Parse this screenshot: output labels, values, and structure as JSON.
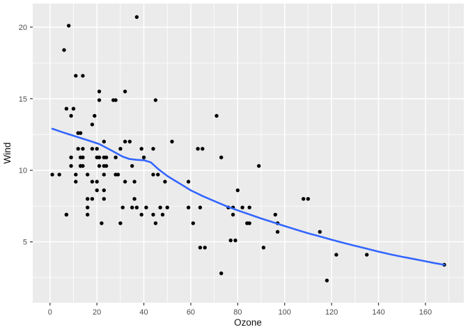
{
  "chart_data": {
    "type": "scatter",
    "title": "",
    "xlabel": "Ozone",
    "ylabel": "Wind",
    "legend": "none",
    "grid": "on",
    "panel_style": "ggplot-gray",
    "xlim": [
      -7.35,
      176.35
    ],
    "ylim": [
      0.75,
      21.65
    ],
    "x_major_ticks": [
      0,
      20,
      40,
      60,
      80,
      100,
      120,
      140,
      160
    ],
    "x_minor_ticks": [
      10,
      30,
      50,
      70,
      90,
      110,
      130,
      150,
      170
    ],
    "y_major_ticks": [
      5,
      10,
      15,
      20
    ],
    "y_minor_ticks": [
      2.5,
      7.5,
      12.5,
      17.5
    ],
    "colors": {
      "panel_bg": "#EBEBEB",
      "grid_major": "#FFFFFF",
      "grid_minor": "#FFFFFF",
      "point": "#000000",
      "smooth_line": "#3366FF",
      "tick_text": "#4D4D4D",
      "tick_mark": "#333333",
      "axis_title": "#111111",
      "outer_bg": "#FFFFFF"
    },
    "points": [
      [
        41,
        7.4
      ],
      [
        36,
        8.0
      ],
      [
        12,
        12.6
      ],
      [
        18,
        11.5
      ],
      [
        28,
        14.9
      ],
      [
        23,
        8.6
      ],
      [
        19,
        13.8
      ],
      [
        8,
        20.1
      ],
      [
        7,
        6.9
      ],
      [
        16,
        9.7
      ],
      [
        11,
        9.2
      ],
      [
        14,
        10.9
      ],
      [
        18,
        13.2
      ],
      [
        14,
        11.5
      ],
      [
        34,
        12.0
      ],
      [
        6,
        18.4
      ],
      [
        30,
        11.5
      ],
      [
        11,
        9.7
      ],
      [
        1,
        9.7
      ],
      [
        11,
        16.6
      ],
      [
        4,
        9.7
      ],
      [
        32,
        12.0
      ],
      [
        23,
        12.0
      ],
      [
        45,
        14.9
      ],
      [
        115,
        5.7
      ],
      [
        37,
        7.4
      ],
      [
        29,
        9.7
      ],
      [
        71,
        13.8
      ],
      [
        39,
        11.5
      ],
      [
        23,
        8.0
      ],
      [
        21,
        14.9
      ],
      [
        37,
        20.7
      ],
      [
        20,
        9.2
      ],
      [
        12,
        11.5
      ],
      [
        13,
        10.3
      ],
      [
        135,
        4.1
      ],
      [
        49,
        9.2
      ],
      [
        32,
        9.2
      ],
      [
        64,
        4.6
      ],
      [
        40,
        10.9
      ],
      [
        77,
        5.1
      ],
      [
        97,
        6.3
      ],
      [
        97,
        5.7
      ],
      [
        85,
        7.4
      ],
      [
        10,
        14.3
      ],
      [
        27,
        14.9
      ],
      [
        7,
        14.3
      ],
      [
        48,
        6.9
      ],
      [
        35,
        10.3
      ],
      [
        61,
        6.3
      ],
      [
        79,
        5.1
      ],
      [
        63,
        11.5
      ],
      [
        16,
        6.9
      ],
      [
        80,
        8.6
      ],
      [
        108,
        8.0
      ],
      [
        20,
        8.6
      ],
      [
        52,
        12.0
      ],
      [
        82,
        7.4
      ],
      [
        50,
        7.4
      ],
      [
        64,
        7.4
      ],
      [
        59,
        9.2
      ],
      [
        39,
        6.9
      ],
      [
        9,
        13.8
      ],
      [
        16,
        7.4
      ],
      [
        78,
        6.9
      ],
      [
        35,
        7.4
      ],
      [
        66,
        4.6
      ],
      [
        122,
        4.1
      ],
      [
        89,
        10.3
      ],
      [
        110,
        8.0
      ],
      [
        44,
        11.5
      ],
      [
        28,
        9.7
      ],
      [
        65,
        11.5
      ],
      [
        22,
        6.3
      ],
      [
        59,
        7.4
      ],
      [
        23,
        10.9
      ],
      [
        31,
        7.4
      ],
      [
        44,
        6.9
      ],
      [
        21,
        10.3
      ],
      [
        9,
        10.9
      ],
      [
        45,
        6.3
      ],
      [
        168,
        3.4
      ],
      [
        73,
        2.8
      ],
      [
        76,
        7.4
      ],
      [
        118,
        2.3
      ],
      [
        84,
        6.3
      ],
      [
        85,
        6.3
      ],
      [
        96,
        6.9
      ],
      [
        78,
        7.4
      ],
      [
        73,
        10.9
      ],
      [
        91,
        4.6
      ],
      [
        47,
        7.4
      ],
      [
        32,
        15.5
      ],
      [
        20,
        10.9
      ],
      [
        23,
        10.3
      ],
      [
        21,
        10.9
      ],
      [
        24,
        10.3
      ],
      [
        44,
        9.7
      ],
      [
        21,
        15.5
      ],
      [
        28,
        10.9
      ],
      [
        9,
        10.3
      ],
      [
        13,
        10.9
      ],
      [
        46,
        9.7
      ],
      [
        18,
        9.2
      ],
      [
        13,
        12.6
      ],
      [
        24,
        10.9
      ],
      [
        16,
        8.0
      ],
      [
        13,
        10.3
      ],
      [
        23,
        9.7
      ],
      [
        36,
        9.2
      ],
      [
        7,
        6.9
      ],
      [
        14,
        10.3
      ],
      [
        30,
        6.3
      ],
      [
        14,
        16.6
      ],
      [
        18,
        8.0
      ],
      [
        20,
        11.5
      ]
    ],
    "smooth": {
      "name": "loess-fit",
      "color": "#3366FF",
      "points": [
        [
          1,
          12.9
        ],
        [
          6,
          12.62
        ],
        [
          11,
          12.36
        ],
        [
          16,
          12.1
        ],
        [
          21,
          11.83
        ],
        [
          26,
          11.4
        ],
        [
          31,
          10.95
        ],
        [
          34,
          10.78
        ],
        [
          37,
          10.73
        ],
        [
          40,
          10.7
        ],
        [
          43,
          10.55
        ],
        [
          46,
          10.1
        ],
        [
          50,
          9.6
        ],
        [
          55,
          9.1
        ],
        [
          60,
          8.6
        ],
        [
          65,
          8.2
        ],
        [
          70,
          7.85
        ],
        [
          75,
          7.5
        ],
        [
          80,
          7.2
        ],
        [
          85,
          6.92
        ],
        [
          90,
          6.63
        ],
        [
          95,
          6.37
        ],
        [
          100,
          6.1
        ],
        [
          105,
          5.85
        ],
        [
          110,
          5.6
        ],
        [
          115,
          5.38
        ],
        [
          120,
          5.15
        ],
        [
          125,
          4.93
        ],
        [
          130,
          4.72
        ],
        [
          135,
          4.52
        ],
        [
          140,
          4.32
        ],
        [
          145,
          4.13
        ],
        [
          150,
          3.96
        ],
        [
          155,
          3.8
        ],
        [
          160,
          3.64
        ],
        [
          164,
          3.51
        ],
        [
          168,
          3.4
        ]
      ]
    }
  }
}
